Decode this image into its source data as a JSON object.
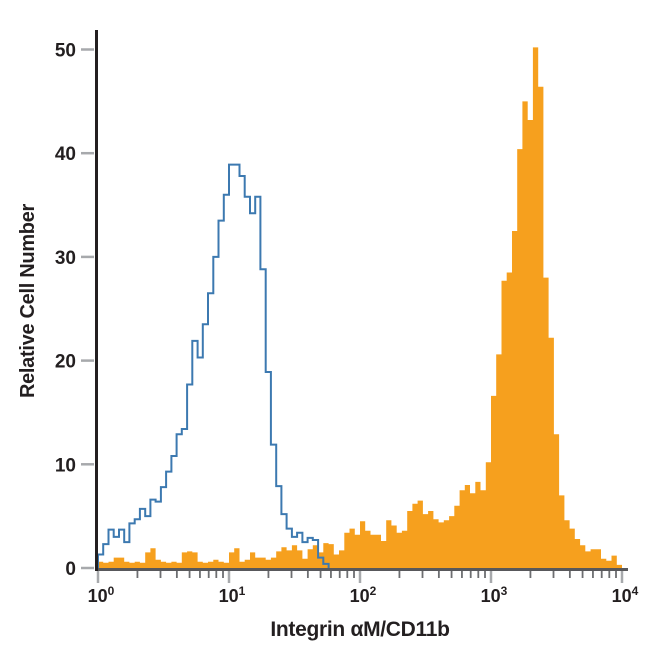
{
  "chart_data": {
    "type": "histogram",
    "subtype": "flow-cytometry-overlay",
    "title": "",
    "xlabel": "Integrin αM/CD11b",
    "ylabel": "Relative Cell Number",
    "x_scale": "log10",
    "x_range_exponents": [
      0,
      4
    ],
    "ylim": [
      0,
      52
    ],
    "grid": false,
    "legend": "none",
    "y_ticks": [
      0,
      10,
      20,
      30,
      40,
      50
    ],
    "y_tick_labels": [
      "0",
      "10",
      "20",
      "30",
      "40",
      "50"
    ],
    "x_ticks": [
      {
        "base": "10",
        "sup": "0",
        "exponent": 0
      },
      {
        "base": "10",
        "sup": "1",
        "exponent": 1
      },
      {
        "base": "10",
        "sup": "2",
        "exponent": 2
      },
      {
        "base": "10",
        "sup": "3",
        "exponent": 3
      },
      {
        "base": "10",
        "sup": "4",
        "exponent": 4
      }
    ],
    "bin_width_log10": 0.04,
    "series": [
      {
        "name": "orange-filled-histogram",
        "style": "filled",
        "color": "#F6A01E",
        "log_start": 0,
        "peak": {
          "x_approx": 2000,
          "height": 50.2
        },
        "heights": [
          0.6,
          0.5,
          0.6,
          1.0,
          1.0,
          0.6,
          0.5,
          0.6,
          0.5,
          1.5,
          1.9,
          0.8,
          0.6,
          0.5,
          0.6,
          0.5,
          1.5,
          1.6,
          1.5,
          0.6,
          0.5,
          0.6,
          0.8,
          0.6,
          0.5,
          1.5,
          1.9,
          0.6,
          0.8,
          1.5,
          1.0,
          1.0,
          0.8,
          1.0,
          1.6,
          2.0,
          1.7,
          2.2,
          1.7,
          0.9,
          1.8,
          2.2,
          1.5,
          2.4,
          2.3,
          1.3,
          1.7,
          3.4,
          3.8,
          3.2,
          4.5,
          3.6,
          3.2,
          3.2,
          2.6,
          4.6,
          4.1,
          3.4,
          3.6,
          5.5,
          6.2,
          6.5,
          5.2,
          5.5,
          4.7,
          4.4,
          4.6,
          5.0,
          6.0,
          7.5,
          8.0,
          7.2,
          8.3,
          7.5,
          10.2,
          16.6,
          20.6,
          27.7,
          28.5,
          32.5,
          40.4,
          45.0,
          43.2,
          50.2,
          46.4,
          28.0,
          22.2,
          12.9,
          7.0,
          4.6,
          3.8,
          2.8,
          2.2,
          1.6,
          1.8,
          1.8,
          0.9,
          0.7,
          1.2,
          0.3
        ]
      },
      {
        "name": "blue-open-histogram",
        "style": "open-outline",
        "color": "#3C79B0",
        "line_width": 2,
        "log_start": 0,
        "peak": {
          "x_approx": 11,
          "height": 38.9
        },
        "heights": [
          1.3,
          2.3,
          3.7,
          3.0,
          3.7,
          2.5,
          4.3,
          4.7,
          5.7,
          5.0,
          6.6,
          6.4,
          7.8,
          9.3,
          10.8,
          12.9,
          13.4,
          17.7,
          21.9,
          20.3,
          23.5,
          26.5,
          30.0,
          33.5,
          36.0,
          38.9,
          38.9,
          37.8,
          35.8,
          34.2,
          35.8,
          28.8,
          18.9,
          11.9,
          7.9,
          5.2,
          3.8,
          3.0,
          3.4,
          2.5,
          2.9,
          2.7,
          1.0,
          0.4
        ]
      }
    ],
    "axis_style": {
      "y_axis_color": "#231f20",
      "x_axis_color": "#58585b",
      "major_tick_color": "#a7a9ac",
      "minor_tick_color": "#6d6e71",
      "text_color": "#231f20"
    }
  }
}
